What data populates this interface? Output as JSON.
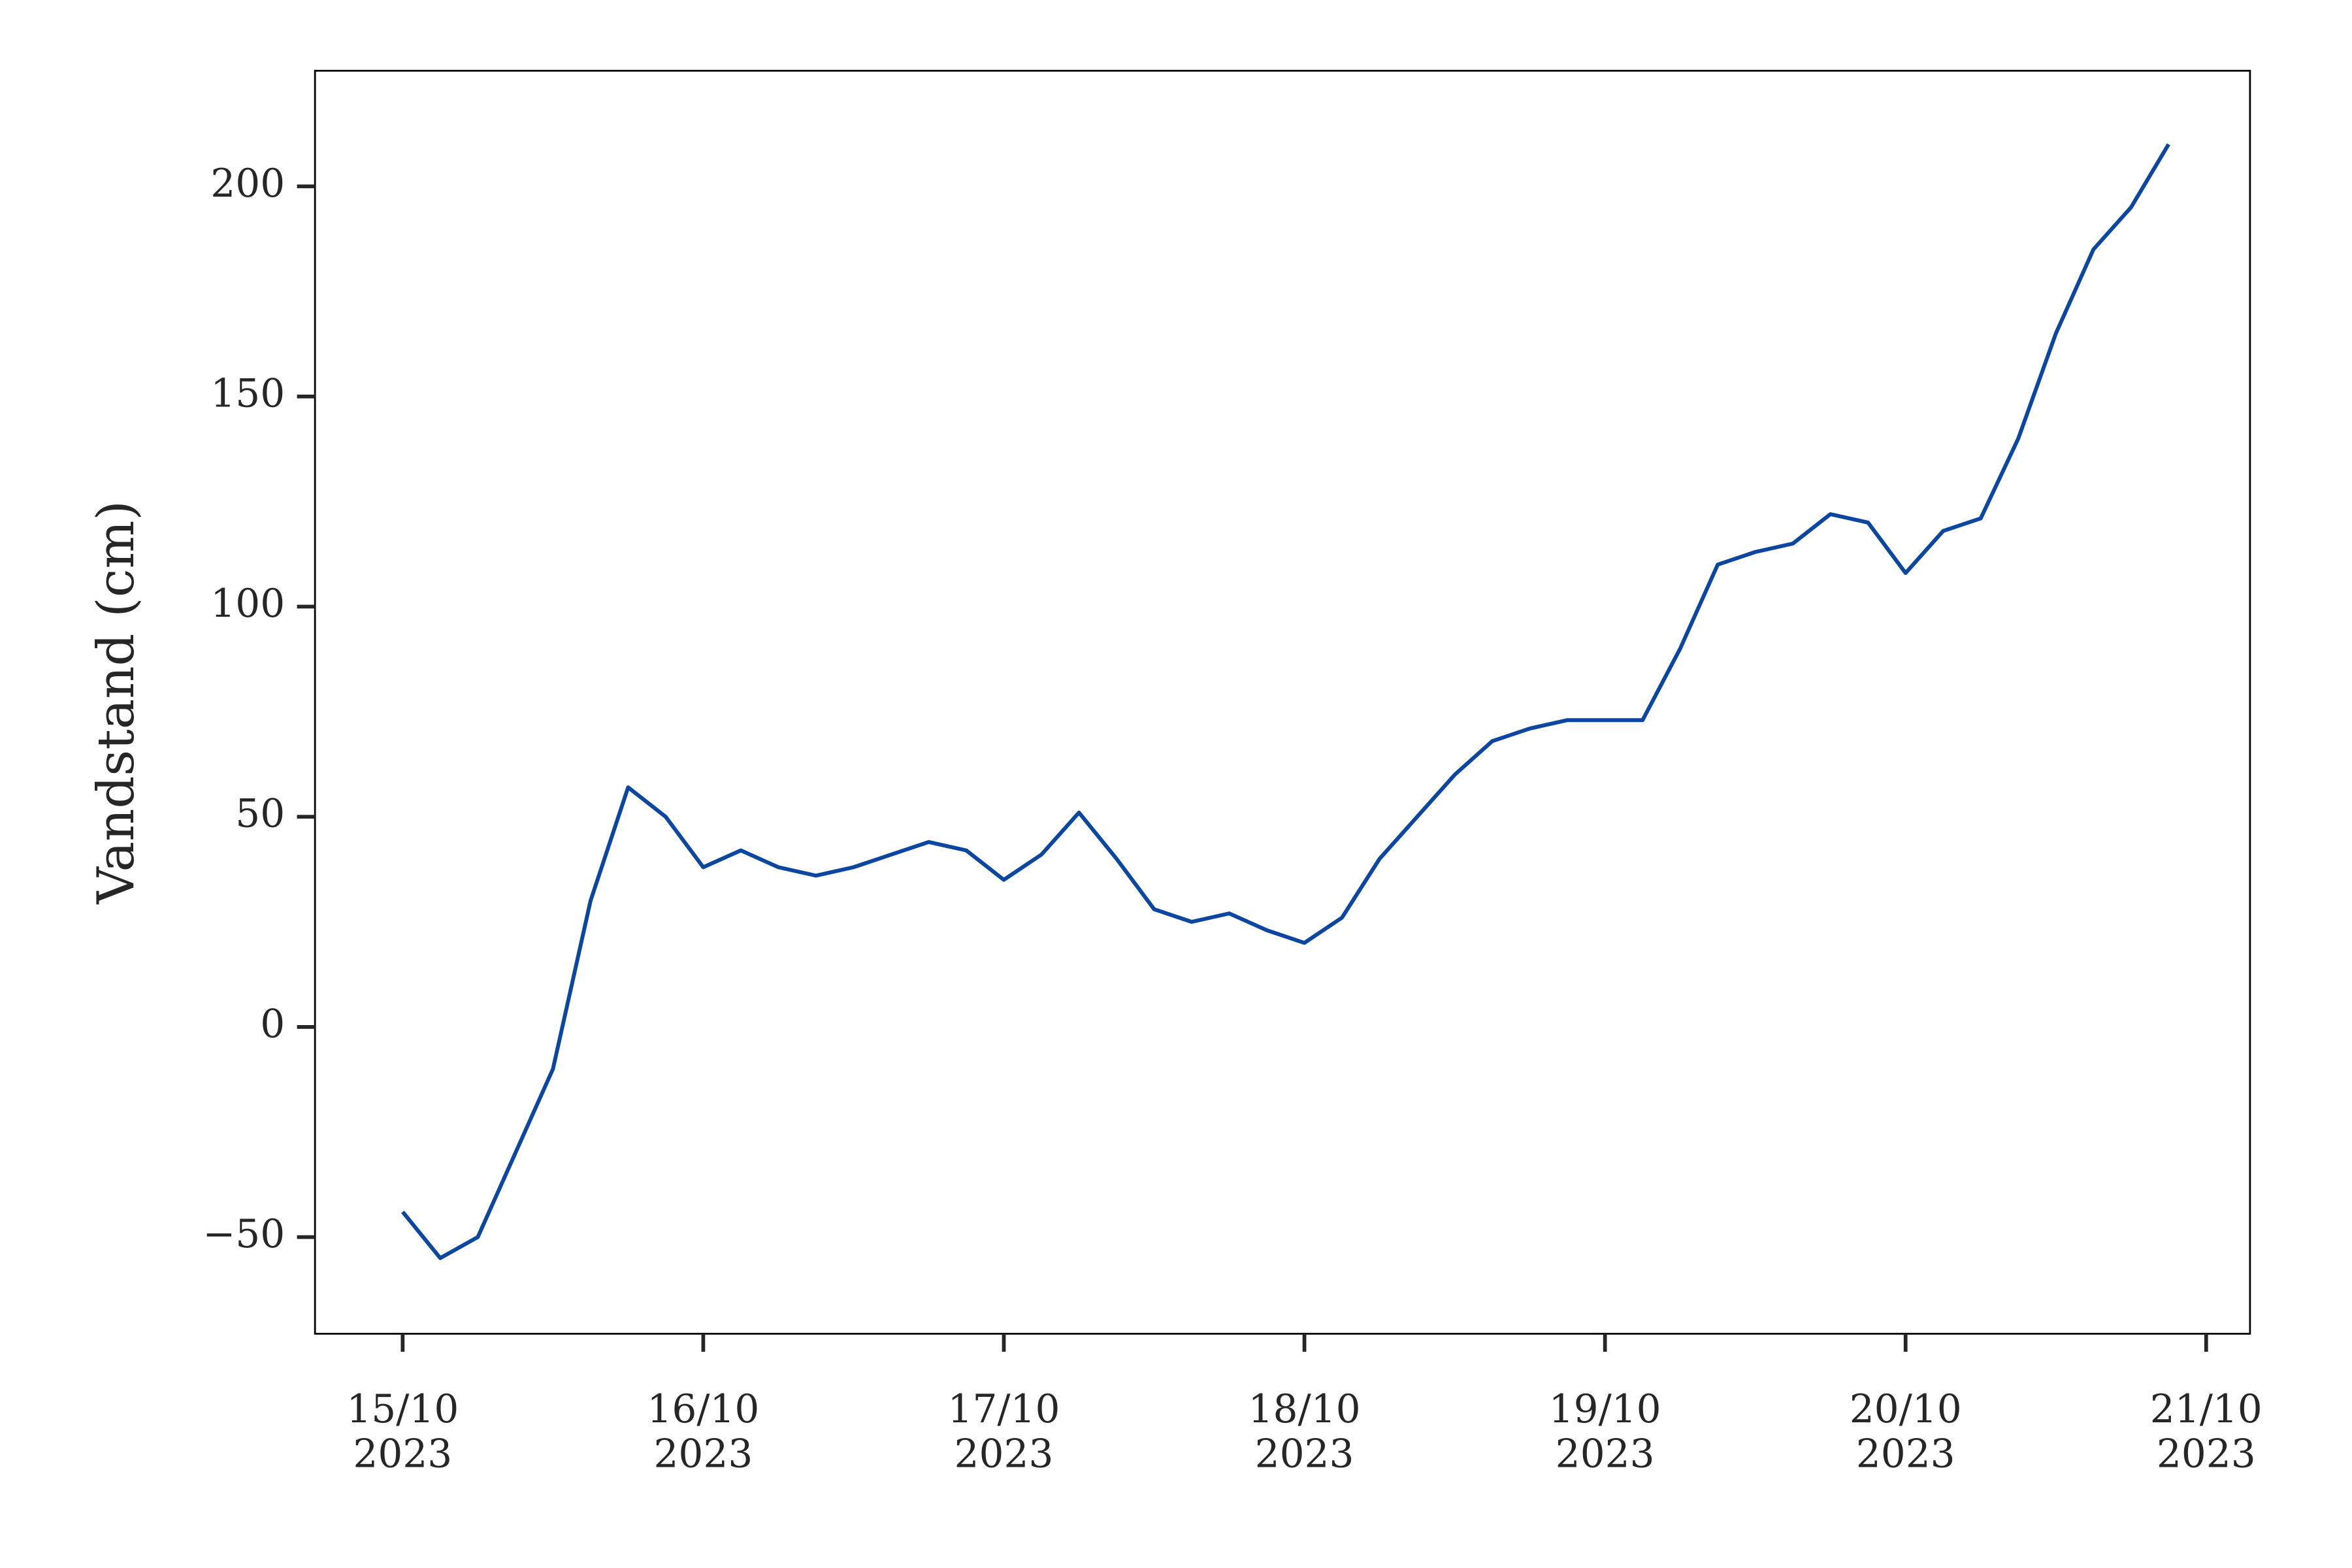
{
  "chart_data": {
    "type": "line",
    "y_label": "Vandstand (cm)",
    "x": [
      "2023-10-15 00:00",
      "2023-10-15 03:00",
      "2023-10-15 06:00",
      "2023-10-15 09:00",
      "2023-10-15 12:00",
      "2023-10-15 15:00",
      "2023-10-15 18:00",
      "2023-10-15 21:00",
      "2023-10-16 00:00",
      "2023-10-16 03:00",
      "2023-10-16 06:00",
      "2023-10-16 09:00",
      "2023-10-16 12:00",
      "2023-10-16 15:00",
      "2023-10-16 18:00",
      "2023-10-16 21:00",
      "2023-10-17 00:00",
      "2023-10-17 03:00",
      "2023-10-17 06:00",
      "2023-10-17 09:00",
      "2023-10-17 12:00",
      "2023-10-17 15:00",
      "2023-10-17 18:00",
      "2023-10-17 21:00",
      "2023-10-18 00:00",
      "2023-10-18 03:00",
      "2023-10-18 06:00",
      "2023-10-18 09:00",
      "2023-10-18 12:00",
      "2023-10-18 15:00",
      "2023-10-18 18:00",
      "2023-10-18 21:00",
      "2023-10-19 00:00",
      "2023-10-19 03:00",
      "2023-10-19 06:00",
      "2023-10-19 09:00",
      "2023-10-19 12:00",
      "2023-10-19 15:00",
      "2023-10-19 18:00",
      "2023-10-19 21:00",
      "2023-10-20 00:00",
      "2023-10-20 03:00",
      "2023-10-20 06:00",
      "2023-10-20 09:00",
      "2023-10-20 12:00",
      "2023-10-20 15:00",
      "2023-10-20 18:00",
      "2023-10-20 21:00"
    ],
    "series": [
      {
        "color": "#0b47a1",
        "values": [
          -44,
          -55,
          -50,
          -30,
          -10,
          30,
          57,
          50,
          38,
          42,
          38,
          36,
          38,
          41,
          44,
          42,
          35,
          41,
          51,
          40,
          28,
          25,
          27,
          23,
          20,
          26,
          40,
          50,
          60,
          68,
          71,
          73,
          73,
          73,
          90,
          110,
          113,
          115,
          122,
          120,
          108,
          118,
          121,
          140,
          165,
          185,
          195,
          210
        ]
      }
    ],
    "xlim": [
      "2023-10-14 17:00",
      "2023-10-21 03:30"
    ],
    "ylim": [
      -73,
      227.5
    ],
    "yticks": [
      {
        "value": -50,
        "label": "−50"
      },
      0,
      50,
      100,
      150,
      200
    ],
    "xticks": [
      {
        "value": "2023-10-15",
        "label": "15/10\n2023"
      },
      {
        "value": "2023-10-16",
        "label": "16/10\n2023"
      },
      {
        "value": "2023-10-17",
        "label": "17/10\n2023"
      },
      {
        "value": "2023-10-18",
        "label": "18/10\n2023"
      },
      {
        "value": "2023-10-19",
        "label": "19/10\n2023"
      },
      {
        "value": "2023-10-20",
        "label": "20/10\n2023"
      },
      {
        "value": "2023-10-21",
        "label": "21/10\n2023"
      }
    ],
    "grid": false
  }
}
